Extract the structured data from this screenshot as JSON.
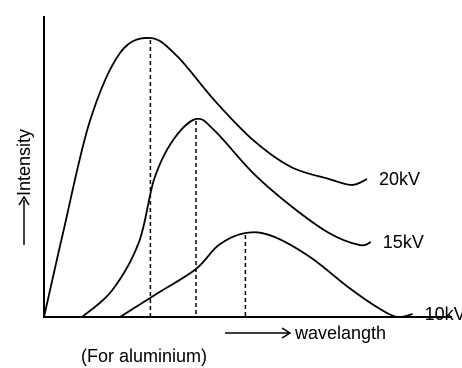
{
  "colors": {
    "ink": "#000000",
    "background": "#ffffff"
  },
  "chart_data": {
    "type": "line",
    "title": "",
    "ylabel": "Intensity",
    "xlabel": "wavelangth",
    "caption": "(For aluminium)",
    "xlim": [
      0,
      10
    ],
    "ylim": [
      0,
      10
    ],
    "series": [
      {
        "name": "20kV",
        "peak_marker": true,
        "points": [
          [
            0.0,
            0.0
          ],
          [
            0.5,
            2.8
          ],
          [
            1.2,
            6.5
          ],
          [
            2.0,
            8.8
          ],
          [
            2.8,
            9.3
          ],
          [
            3.5,
            8.7
          ],
          [
            4.5,
            7.2
          ],
          [
            5.5,
            5.9
          ],
          [
            6.5,
            5.0
          ],
          [
            7.5,
            4.6
          ],
          [
            8.1,
            4.4
          ],
          [
            8.5,
            4.6
          ]
        ]
      },
      {
        "name": "15kV",
        "peak_marker": true,
        "points": [
          [
            1.0,
            0.0
          ],
          [
            1.8,
            0.9
          ],
          [
            2.5,
            2.5
          ],
          [
            2.9,
            4.6
          ],
          [
            3.4,
            5.9
          ],
          [
            4.0,
            6.6
          ],
          [
            4.5,
            6.2
          ],
          [
            5.5,
            4.8
          ],
          [
            6.5,
            3.7
          ],
          [
            7.5,
            2.8
          ],
          [
            8.3,
            2.4
          ],
          [
            8.6,
            2.5
          ]
        ]
      },
      {
        "name": "10kV",
        "peak_marker": true,
        "points": [
          [
            2.0,
            0.0
          ],
          [
            3.0,
            0.8
          ],
          [
            4.0,
            1.6
          ],
          [
            4.6,
            2.4
          ],
          [
            5.3,
            2.8
          ],
          [
            6.0,
            2.7
          ],
          [
            7.0,
            2.0
          ],
          [
            8.0,
            1.0
          ],
          [
            8.8,
            0.3
          ],
          [
            9.3,
            0.0
          ],
          [
            9.7,
            0.1
          ]
        ]
      }
    ]
  }
}
